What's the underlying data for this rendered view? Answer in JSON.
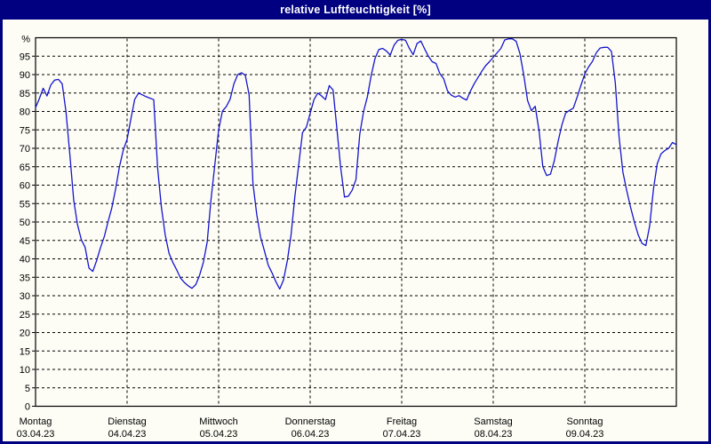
{
  "window": {
    "title": "relative Luftfeuchtigkeit [%]"
  },
  "colors": {
    "window_border": "#000080",
    "titlebar_bg": "#000080",
    "title_text": "#ffffff",
    "panel_bg": "#fdfdf6",
    "axis_and_grid": "#000000",
    "line": "#1515cd"
  },
  "chart_data": {
    "type": "line",
    "title": "relative Luftfeuchtigkeit [%]",
    "ylabel": "%",
    "ylim": [
      0,
      100
    ],
    "ytick_step": 5,
    "yticks": [
      0,
      5,
      10,
      15,
      20,
      25,
      30,
      35,
      40,
      45,
      50,
      55,
      60,
      65,
      70,
      75,
      80,
      85,
      90,
      95
    ],
    "grid": "dashed horizontal every 5%, dashed vertical at each day boundary",
    "legend_position": "none",
    "x_axis": {
      "unit": "hours",
      "hours_per_day": 24,
      "days": [
        {
          "name": "Montag",
          "date": "03.04.23"
        },
        {
          "name": "Dienstag",
          "date": "04.04.23"
        },
        {
          "name": "Mittwoch",
          "date": "05.04.23"
        },
        {
          "name": "Donnerstag",
          "date": "06.04.23"
        },
        {
          "name": "Freitag",
          "date": "07.04.23"
        },
        {
          "name": "Samstag",
          "date": "08.04.23"
        },
        {
          "name": "Sonntag",
          "date": "09.04.23"
        }
      ]
    },
    "series": [
      {
        "name": "relative Luftfeuchtigkeit [%]",
        "color": "#1515cd",
        "values_hourly": [
          81,
          83.5,
          86.3,
          84.2,
          87.2,
          88.5,
          88.7,
          87.5,
          79.8,
          68.3,
          56,
          49.3,
          45.2,
          43.1,
          37.5,
          36.6,
          39.5,
          43,
          46,
          50,
          53.8,
          59,
          65,
          69.5,
          72.4,
          78,
          83.3,
          85,
          84.5,
          84,
          83.6,
          83.2,
          64.8,
          54,
          46.5,
          41.5,
          39,
          37,
          34.8,
          33.6,
          32.7,
          32,
          33,
          35.5,
          39,
          44.5,
          56,
          65.5,
          75,
          80.1,
          81.3,
          83.3,
          87.5,
          90,
          90.5,
          89.8,
          84.5,
          60.5,
          52,
          45.9,
          42.2,
          38.3,
          36.2,
          33.8,
          31.8,
          34.3,
          39.5,
          46.5,
          57,
          65.5,
          74.3,
          75.7,
          79.5,
          83.2,
          85,
          84.2,
          83.2,
          87,
          85.8,
          75.5,
          64.8,
          56.8,
          57,
          58.6,
          61.5,
          73.8,
          80,
          84,
          89.8,
          94.4,
          96.8,
          97.1,
          96.4,
          95.3,
          98,
          99.3,
          99.6,
          99.3,
          97.1,
          95.4,
          98.4,
          99.1,
          97,
          95,
          93.5,
          93,
          90.3,
          88.9,
          85.6,
          84.4,
          83.9,
          84.3,
          83.6,
          83.1,
          85.5,
          87.5,
          89.2,
          90.9,
          92.4,
          93.5,
          94.7,
          95.9,
          97.1,
          99.4,
          99.7,
          99.7,
          99,
          95.7,
          89.9,
          83,
          80.2,
          81.4,
          74.8,
          65,
          62.6,
          63,
          66.6,
          71.9,
          76.4,
          79.6,
          80.3,
          80.9,
          83.9,
          87.1,
          90.2,
          92.1,
          93.6,
          95.9,
          97.2,
          97.4,
          97.4,
          96.3,
          87.8,
          73,
          63.5,
          58.5,
          54,
          50,
          46.5,
          44.2,
          43.6,
          49,
          59,
          65.8,
          68.5,
          69.4,
          70,
          71.6,
          71
        ]
      }
    ]
  }
}
